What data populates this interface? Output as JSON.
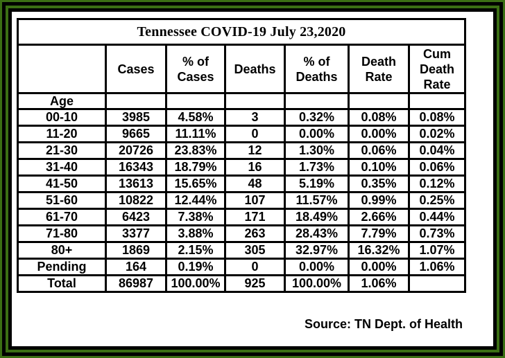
{
  "title": "Tennessee COVID-19   July 23,2020",
  "headers": {
    "cases": "Cases",
    "pct_cases": "% of\nCases",
    "deaths": "Deaths",
    "pct_deaths": "% of\nDeaths",
    "death_rate": "Death\nRate",
    "cum_death_rate": "Cum\nDeath\nRate"
  },
  "age_label": "Age",
  "rows": [
    {
      "age": "00-10",
      "cases": "3985",
      "pct_cases": "4.58%",
      "deaths": "3",
      "pct_deaths": "0.32%",
      "death_rate": "0.08%",
      "cum_rate": "0.08%"
    },
    {
      "age": "11-20",
      "cases": "9665",
      "pct_cases": "11.11%",
      "deaths": "0",
      "pct_deaths": "0.00%",
      "death_rate": "0.00%",
      "cum_rate": "0.02%"
    },
    {
      "age": "21-30",
      "cases": "20726",
      "pct_cases": "23.83%",
      "deaths": "12",
      "pct_deaths": "1.30%",
      "death_rate": "0.06%",
      "cum_rate": "0.04%"
    },
    {
      "age": "31-40",
      "cases": "16343",
      "pct_cases": "18.79%",
      "deaths": "16",
      "pct_deaths": "1.73%",
      "death_rate": "0.10%",
      "cum_rate": "0.06%"
    },
    {
      "age": "41-50",
      "cases": "13613",
      "pct_cases": "15.65%",
      "deaths": "48",
      "pct_deaths": "5.19%",
      "death_rate": "0.35%",
      "cum_rate": "0.12%"
    },
    {
      "age": "51-60",
      "cases": "10822",
      "pct_cases": "12.44%",
      "deaths": "107",
      "pct_deaths": "11.57%",
      "death_rate": "0.99%",
      "cum_rate": "0.25%"
    },
    {
      "age": "61-70",
      "cases": "6423",
      "pct_cases": "7.38%",
      "deaths": "171",
      "pct_deaths": "18.49%",
      "death_rate": "2.66%",
      "cum_rate": "0.44%"
    },
    {
      "age": "71-80",
      "cases": "3377",
      "pct_cases": "3.88%",
      "deaths": "263",
      "pct_deaths": "28.43%",
      "death_rate": "7.79%",
      "cum_rate": "0.73%"
    },
    {
      "age": "80+",
      "cases": "1869",
      "pct_cases": "2.15%",
      "deaths": "305",
      "pct_deaths": "32.97%",
      "death_rate": "16.32%",
      "cum_rate": "1.07%"
    },
    {
      "age": "Pending",
      "cases": "164",
      "pct_cases": "0.19%",
      "deaths": "0",
      "pct_deaths": "0.00%",
      "death_rate": "0.00%",
      "cum_rate": "1.06%"
    },
    {
      "age": "Total",
      "cases": "86987",
      "pct_cases": "100.00%",
      "deaths": "925",
      "pct_deaths": "100.00%",
      "death_rate": "1.06%",
      "cum_rate": ""
    }
  ],
  "source": "Source: TN Dept. of Health",
  "colors": {
    "frame_green": "#3b6e14",
    "border": "#000000",
    "background": "#ffffff"
  }
}
